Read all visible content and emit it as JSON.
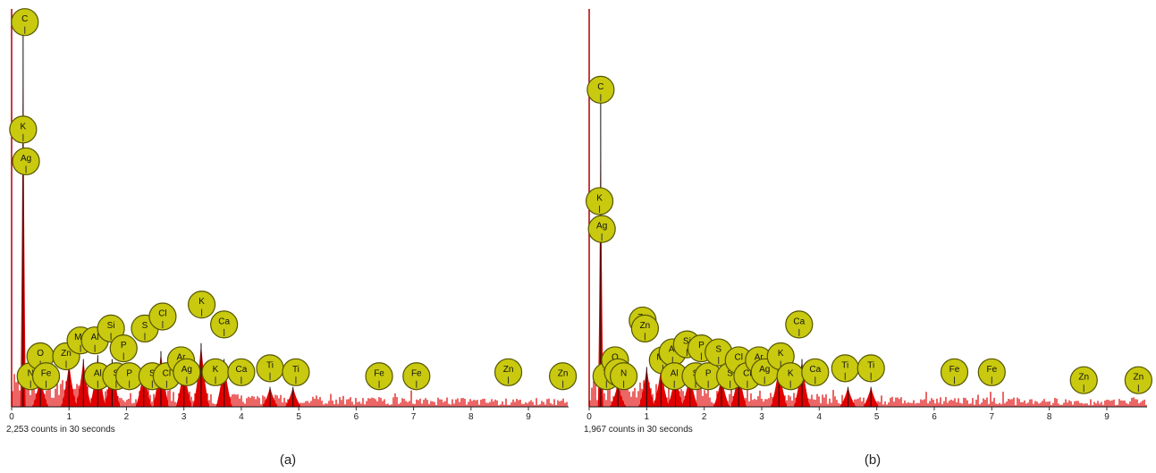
{
  "chart_data": [
    {
      "type": "line",
      "panel_label": "(a)",
      "counts_text": "2,253 counts in 30 seconds",
      "xlabel": "",
      "ylabel": "",
      "xlim": [
        0,
        9.7
      ],
      "x_ticks": [
        0,
        1,
        2,
        3,
        4,
        5,
        6,
        7,
        8,
        9
      ],
      "grid": false,
      "colors": {
        "spectrum": "#e00000",
        "outline": "#111111",
        "marker_fill": "#c9c90f",
        "marker_stroke": "#555500",
        "axis": "#b00000"
      },
      "spectrum_peaks": [
        {
          "x": 0.2,
          "y": 1.0
        },
        {
          "x": 0.5,
          "y": 0.08
        },
        {
          "x": 1.0,
          "y": 0.11
        },
        {
          "x": 1.25,
          "y": 0.12
        },
        {
          "x": 1.5,
          "y": 0.13
        },
        {
          "x": 1.75,
          "y": 0.12
        },
        {
          "x": 2.3,
          "y": 0.1
        },
        {
          "x": 2.6,
          "y": 0.14
        },
        {
          "x": 3.0,
          "y": 0.11
        },
        {
          "x": 3.3,
          "y": 0.16
        },
        {
          "x": 3.7,
          "y": 0.12
        },
        {
          "x": 4.5,
          "y": 0.05
        },
        {
          "x": 4.9,
          "y": 0.05
        }
      ],
      "element_markers": [
        {
          "label": "C",
          "x": 0.23,
          "y": 0.94
        },
        {
          "label": "K",
          "x": 0.2,
          "y": 0.67
        },
        {
          "label": "Ag",
          "x": 0.25,
          "y": 0.59
        },
        {
          "label": "N",
          "x": 0.33,
          "y": 0.05
        },
        {
          "label": "O",
          "x": 0.5,
          "y": 0.1
        },
        {
          "label": "Fe",
          "x": 0.6,
          "y": 0.05
        },
        {
          "label": "Zn",
          "x": 0.95,
          "y": 0.1
        },
        {
          "label": "Mg",
          "x": 1.2,
          "y": 0.14
        },
        {
          "label": "Al",
          "x": 1.45,
          "y": 0.14
        },
        {
          "label": "Al",
          "x": 1.5,
          "y": 0.05
        },
        {
          "label": "Si",
          "x": 1.73,
          "y": 0.17
        },
        {
          "label": "S",
          "x": 1.82,
          "y": 0.05
        },
        {
          "label": "P",
          "x": 1.95,
          "y": 0.12
        },
        {
          "label": "P",
          "x": 2.05,
          "y": 0.05
        },
        {
          "label": "S",
          "x": 2.32,
          "y": 0.17
        },
        {
          "label": "S",
          "x": 2.45,
          "y": 0.05
        },
        {
          "label": "Cl",
          "x": 2.63,
          "y": 0.2
        },
        {
          "label": "Cl",
          "x": 2.7,
          "y": 0.05
        },
        {
          "label": "Ar",
          "x": 2.95,
          "y": 0.09
        },
        {
          "label": "Ag",
          "x": 3.05,
          "y": 0.06
        },
        {
          "label": "K",
          "x": 3.31,
          "y": 0.23
        },
        {
          "label": "K",
          "x": 3.55,
          "y": 0.06
        },
        {
          "label": "Ca",
          "x": 3.7,
          "y": 0.18
        },
        {
          "label": "Ca",
          "x": 4.0,
          "y": 0.06
        },
        {
          "label": "Ti",
          "x": 4.5,
          "y": 0.07
        },
        {
          "label": "Ti",
          "x": 4.95,
          "y": 0.06
        },
        {
          "label": "Fe",
          "x": 6.4,
          "y": 0.05
        },
        {
          "label": "Fe",
          "x": 7.05,
          "y": 0.05
        },
        {
          "label": "Zn",
          "x": 8.65,
          "y": 0.06
        },
        {
          "label": "Zn",
          "x": 9.6,
          "y": 0.05
        }
      ]
    },
    {
      "type": "line",
      "panel_label": "(b)",
      "counts_text": "1,967 counts in 30 seconds",
      "xlabel": "",
      "ylabel": "",
      "xlim": [
        0,
        9.7
      ],
      "x_ticks": [
        0,
        1,
        2,
        3,
        4,
        5,
        6,
        7,
        8,
        9
      ],
      "grid": false,
      "colors": {
        "spectrum": "#e00000",
        "outline": "#111111",
        "marker_fill": "#c9c90f",
        "marker_stroke": "#555500",
        "axis": "#b00000"
      },
      "spectrum_peaks": [
        {
          "x": 0.2,
          "y": 0.77
        },
        {
          "x": 0.5,
          "y": 0.06
        },
        {
          "x": 1.0,
          "y": 0.1
        },
        {
          "x": 1.25,
          "y": 0.1
        },
        {
          "x": 1.5,
          "y": 0.09
        },
        {
          "x": 1.75,
          "y": 0.09
        },
        {
          "x": 2.3,
          "y": 0.08
        },
        {
          "x": 2.6,
          "y": 0.1
        },
        {
          "x": 3.3,
          "y": 0.11
        },
        {
          "x": 3.7,
          "y": 0.12
        },
        {
          "x": 4.5,
          "y": 0.05
        },
        {
          "x": 4.9,
          "y": 0.05
        }
      ],
      "element_markers": [
        {
          "label": "C",
          "x": 0.2,
          "y": 0.77
        },
        {
          "label": "K",
          "x": 0.18,
          "y": 0.49
        },
        {
          "label": "Ag",
          "x": 0.22,
          "y": 0.42
        },
        {
          "label": "Ti",
          "x": 0.3,
          "y": 0.05
        },
        {
          "label": "O",
          "x": 0.45,
          "y": 0.09
        },
        {
          "label": "C",
          "x": 0.5,
          "y": 0.06
        },
        {
          "label": "N",
          "x": 0.6,
          "y": 0.05
        },
        {
          "label": "Zn",
          "x": 0.93,
          "y": 0.19
        },
        {
          "label": "Zn",
          "x": 0.97,
          "y": 0.17
        },
        {
          "label": "Mg",
          "x": 1.28,
          "y": 0.09
        },
        {
          "label": "Al",
          "x": 1.45,
          "y": 0.11
        },
        {
          "label": "Al",
          "x": 1.48,
          "y": 0.05
        },
        {
          "label": "Si",
          "x": 1.7,
          "y": 0.13
        },
        {
          "label": "S",
          "x": 1.85,
          "y": 0.05
        },
        {
          "label": "P",
          "x": 1.95,
          "y": 0.12
        },
        {
          "label": "P",
          "x": 2.07,
          "y": 0.05
        },
        {
          "label": "S",
          "x": 2.25,
          "y": 0.11
        },
        {
          "label": "S",
          "x": 2.45,
          "y": 0.05
        },
        {
          "label": "Cl",
          "x": 2.6,
          "y": 0.09
        },
        {
          "label": "Cl",
          "x": 2.75,
          "y": 0.05
        },
        {
          "label": "Ar",
          "x": 2.95,
          "y": 0.09
        },
        {
          "label": "Ag",
          "x": 3.05,
          "y": 0.06
        },
        {
          "label": "K",
          "x": 3.33,
          "y": 0.1
        },
        {
          "label": "K",
          "x": 3.5,
          "y": 0.05
        },
        {
          "label": "Ca",
          "x": 3.65,
          "y": 0.18
        },
        {
          "label": "Ca",
          "x": 3.93,
          "y": 0.06
        },
        {
          "label": "Ti",
          "x": 4.45,
          "y": 0.07
        },
        {
          "label": "Ti",
          "x": 4.9,
          "y": 0.07
        },
        {
          "label": "Fe",
          "x": 6.35,
          "y": 0.06
        },
        {
          "label": "Fe",
          "x": 7.0,
          "y": 0.06
        },
        {
          "label": "Zn",
          "x": 8.6,
          "y": 0.04
        },
        {
          "label": "Zn",
          "x": 9.55,
          "y": 0.04
        }
      ]
    }
  ]
}
